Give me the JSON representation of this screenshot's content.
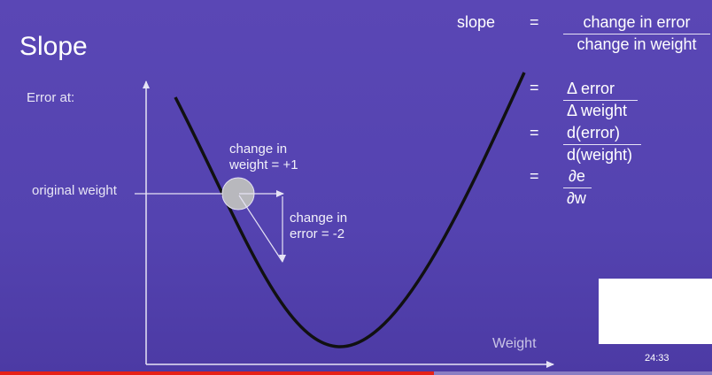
{
  "slide": {
    "title": "Slope",
    "y_axis_label": "Error at:",
    "x_axis_label": "Weight",
    "original_weight_label": "original weight",
    "annotation_weight": [
      "change in",
      "weight = +1"
    ],
    "annotation_error": [
      "change in",
      "error = -2"
    ]
  },
  "equation": {
    "lhs": "slope",
    "equals": "=",
    "numerator_1": "change in error",
    "denominator_1": "change in weight",
    "numerator_2": "Δ error",
    "denominator_2": "Δ weight",
    "numerator_3": "d(error)",
    "denominator_3": "d(weight)",
    "numerator_4": "∂e",
    "denominator_4": "∂w"
  },
  "player": {
    "timestamp": "24:33",
    "progress_fraction": 0.61
  },
  "colors": {
    "background": "#5443b0",
    "ball": "#b8b8bd",
    "progress": "#e62117"
  }
}
